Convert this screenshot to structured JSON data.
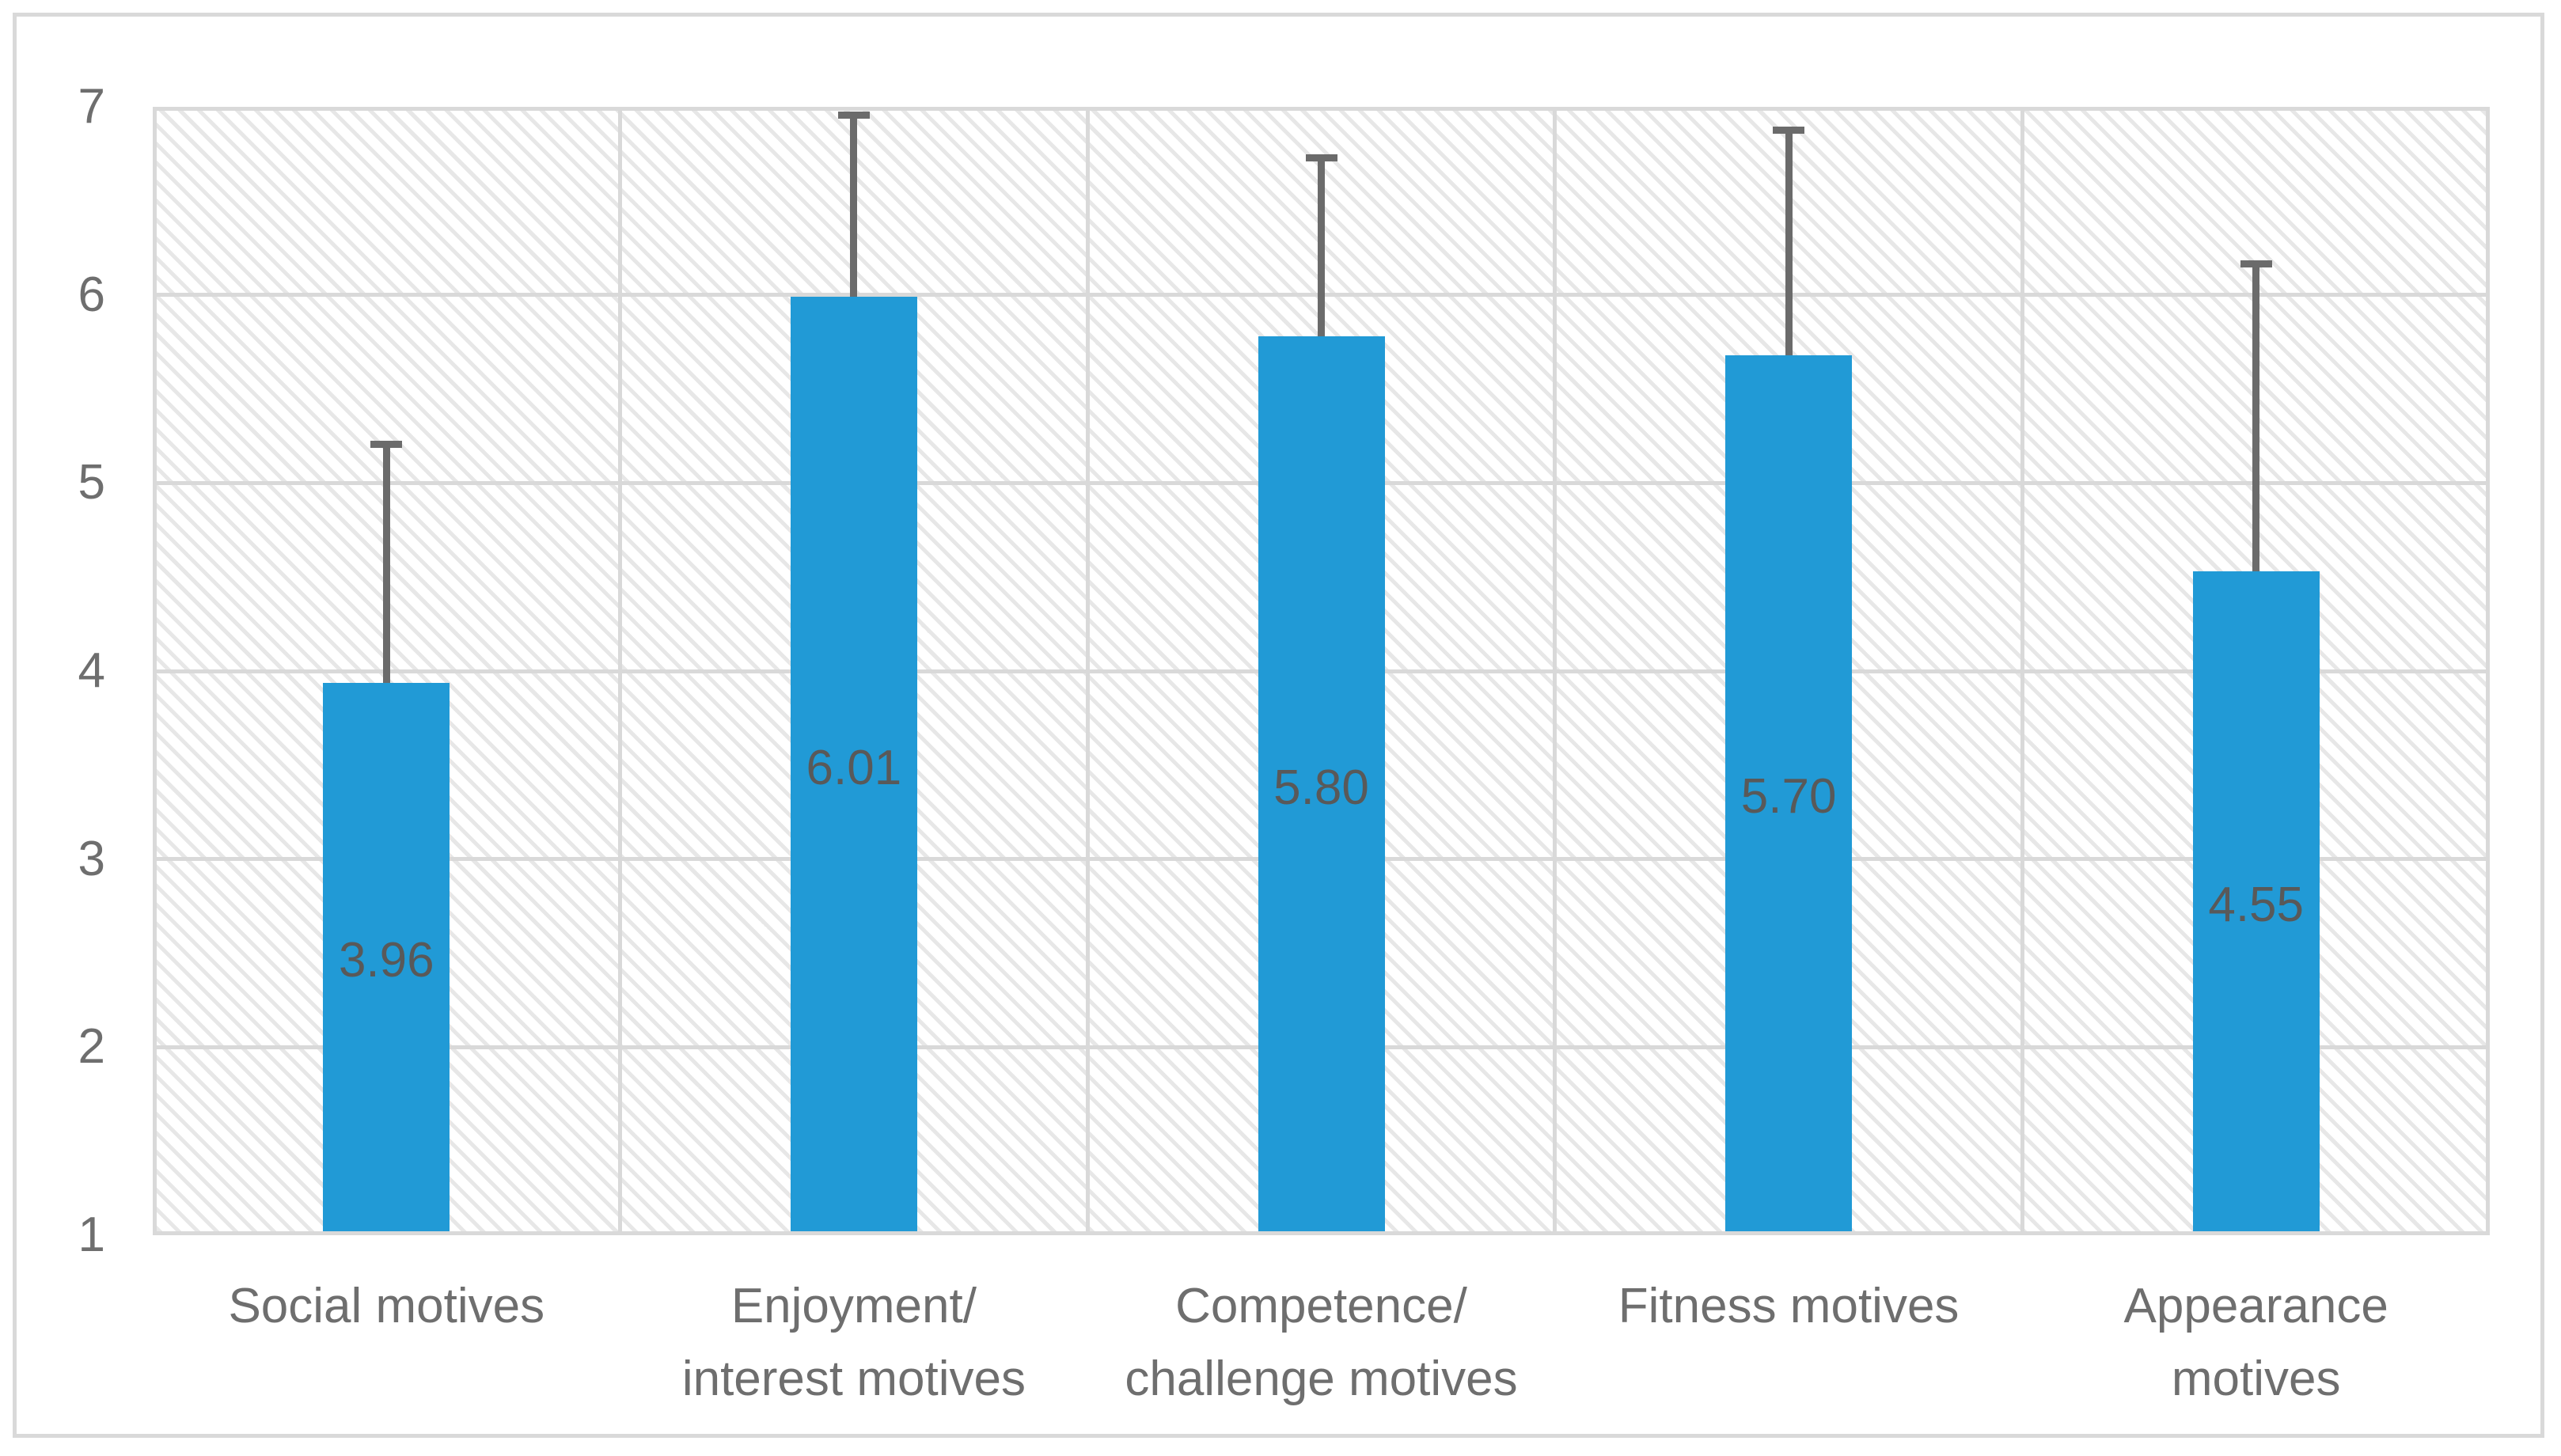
{
  "figure": {
    "description": "Column chart of exercise motive mean scores with upper error bars",
    "colors": {
      "bar_fill": "#219ad6",
      "error_bar": "#6b6b6b",
      "gridline": "#d9d9d9",
      "frame_border": "#d9d9d9",
      "axis_text": "#6e6e6e",
      "data_label_text": "#595959",
      "background": "#ffffff"
    }
  },
  "chart_data": {
    "type": "bar",
    "title": "",
    "xlabel": "",
    "ylabel": "",
    "categories": [
      "Social motives",
      "Enjoyment/ interest motives",
      "Competence/ challenge motives",
      "Fitness motives",
      "Appearance motives"
    ],
    "category_label_lines": [
      [
        "Social motives"
      ],
      [
        "Enjoyment/",
        "interest motives"
      ],
      [
        "Competence/",
        "challenge motives"
      ],
      [
        "Fitness motives"
      ],
      [
        "Appearance",
        "motives"
      ]
    ],
    "values": [
      3.96,
      6.01,
      5.8,
      5.7,
      4.55
    ],
    "data_labels": [
      "3.96",
      "6.01",
      "5.80",
      "5.70",
      "4.55"
    ],
    "error_plus": [
      1.27,
      0.97,
      0.95,
      1.2,
      1.64
    ],
    "error_bar_tops": [
      5.23,
      6.98,
      6.75,
      6.9,
      6.19
    ],
    "ylim": [
      1,
      7
    ],
    "yticks": [
      1,
      2,
      3,
      4,
      5,
      6,
      7
    ],
    "ytick_labels": [
      "1",
      "2",
      "3",
      "4",
      "5",
      "6",
      "7"
    ],
    "grid": "horizontal and vertical gridlines, hatched plot background",
    "legend": "none"
  }
}
